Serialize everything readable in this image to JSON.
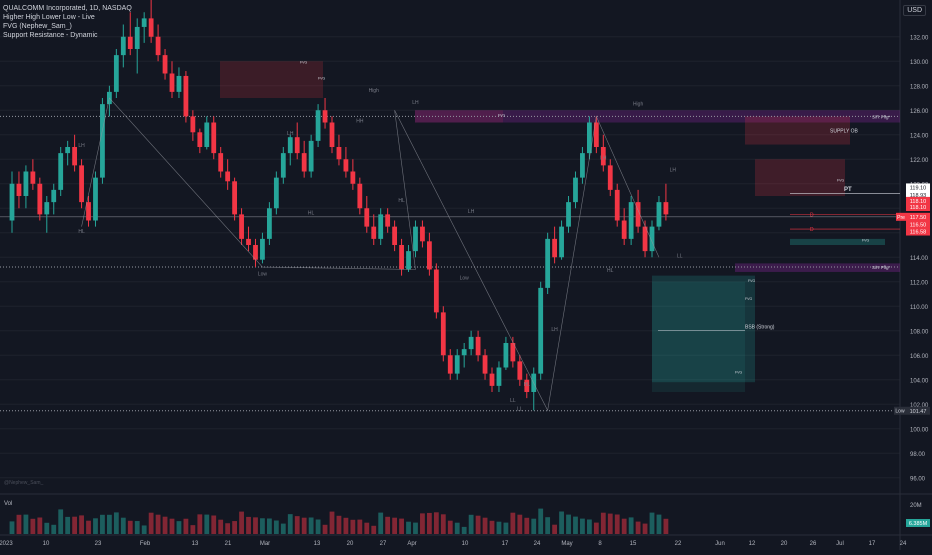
{
  "header": {
    "title": "QUALCOMM Incorporated, 1D, NASDAQ",
    "indicators": [
      "Higher High Lower Low - Live",
      "FVG (Nephew_Sam_)",
      "Support Resistance - Dynamic"
    ],
    "currency": "USD",
    "watermark": "@Nephew_Sam_"
  },
  "chart_data": {
    "type": "candlestick",
    "symbol": "QCOM",
    "interval": "1D",
    "exchange": "NASDAQ",
    "ylim": [
      95,
      135
    ],
    "yticks": [
      "132.00",
      "130.00",
      "128.00",
      "126.00",
      "124.00",
      "122.00",
      "120.00",
      "118.00",
      "116.00",
      "114.00",
      "112.00",
      "110.00",
      "108.00",
      "106.00",
      "104.00",
      "102.00",
      "100.00",
      "98.00",
      "96.00"
    ],
    "xticks": [
      "2023",
      "10",
      "23",
      "Feb",
      "13",
      "21",
      "Mar",
      "13",
      "20",
      "27",
      "Apr",
      "10",
      "17",
      "24",
      "May",
      "8",
      "15",
      "22",
      "Jun",
      "12",
      "20",
      "26",
      "Jul",
      "17",
      "24"
    ],
    "volume_label": "Vol",
    "volume_ticks": [
      "20M"
    ],
    "volume_value": "6.385M",
    "candles": [
      [
        117,
        121,
        116,
        120
      ],
      [
        120,
        121,
        118,
        119
      ],
      [
        119,
        121.5,
        118,
        121
      ],
      [
        121,
        122,
        119.5,
        120
      ],
      [
        120,
        120.5,
        117,
        117.5
      ],
      [
        117.5,
        119,
        116,
        118.5
      ],
      [
        118.5,
        120,
        117.5,
        119.5
      ],
      [
        119.5,
        123,
        119,
        122.5
      ],
      [
        122.5,
        123.5,
        121.5,
        123
      ],
      [
        123,
        124,
        121,
        121.5
      ],
      [
        121.5,
        122,
        118,
        118.5
      ],
      [
        118.5,
        119,
        116.5,
        117
      ],
      [
        117,
        121,
        116.5,
        120.5
      ],
      [
        120.5,
        127,
        120,
        126.5
      ],
      [
        126.5,
        128,
        125.5,
        127.5
      ],
      [
        127.5,
        131,
        127,
        130.5
      ],
      [
        130.5,
        133,
        129.5,
        132
      ],
      [
        132,
        134,
        130.5,
        131
      ],
      [
        131,
        133.5,
        129,
        132.8
      ],
      [
        132.8,
        134,
        131.5,
        133.5
      ],
      [
        133.5,
        135,
        131.5,
        132
      ],
      [
        132,
        133,
        130,
        130.5
      ],
      [
        130.5,
        131,
        128.5,
        129
      ],
      [
        129,
        130,
        127,
        127.5
      ],
      [
        127.5,
        129.5,
        127,
        128.8
      ],
      [
        128.8,
        129.2,
        125,
        125.5
      ],
      [
        125.5,
        126,
        123.5,
        124.2
      ],
      [
        124.2,
        124.5,
        122.5,
        123
      ],
      [
        123,
        125.5,
        122.8,
        125
      ],
      [
        125,
        125.5,
        122,
        122.5
      ],
      [
        122.5,
        123,
        120.5,
        121
      ],
      [
        121,
        122,
        119.5,
        120.2
      ],
      [
        120.2,
        120.5,
        117,
        117.5
      ],
      [
        117.5,
        118,
        115,
        115.5
      ],
      [
        115.5,
        116.5,
        114.5,
        115
      ],
      [
        115,
        115.5,
        113.2,
        113.8
      ],
      [
        113.8,
        116,
        113.5,
        115.5
      ],
      [
        115.5,
        118.5,
        115,
        118
      ],
      [
        118,
        121,
        117.5,
        120.5
      ],
      [
        120.5,
        123,
        120,
        122.5
      ],
      [
        122.5,
        124,
        121.5,
        123.8
      ],
      [
        123.8,
        125,
        122,
        122.5
      ],
      [
        122.5,
        123.5,
        120.5,
        121
      ],
      [
        121,
        124,
        120.5,
        123.5
      ],
      [
        123.5,
        126.5,
        123,
        126
      ],
      [
        126,
        127,
        124.5,
        125
      ],
      [
        125,
        125.5,
        122.5,
        123
      ],
      [
        123,
        124,
        121.5,
        122
      ],
      [
        122,
        123,
        120.5,
        121
      ],
      [
        121,
        122,
        119.5,
        120
      ],
      [
        120,
        120.5,
        117.5,
        118
      ],
      [
        118,
        119,
        116,
        116.5
      ],
      [
        116.5,
        117.5,
        115,
        115.5
      ],
      [
        115.5,
        118,
        115,
        117.5
      ],
      [
        117.5,
        118,
        116,
        116.5
      ],
      [
        116.5,
        117,
        114.5,
        115
      ],
      [
        115,
        115.5,
        112.5,
        113
      ],
      [
        113,
        115,
        112.8,
        114.5
      ],
      [
        114.5,
        117,
        114,
        116.5
      ],
      [
        116.5,
        117,
        114.8,
        115.3
      ],
      [
        115.3,
        116,
        112.5,
        113
      ],
      [
        113,
        113.5,
        109,
        109.5
      ],
      [
        109.5,
        110,
        105.5,
        106
      ],
      [
        106,
        106.5,
        104,
        104.5
      ],
      [
        104.5,
        106.5,
        104,
        106
      ],
      [
        106,
        107,
        105,
        106.5
      ],
      [
        106.5,
        108,
        106,
        107.5
      ],
      [
        107.5,
        108,
        105.5,
        106
      ],
      [
        106,
        106.5,
        104,
        104.5
      ],
      [
        104.5,
        105,
        103,
        103.5
      ],
      [
        103.5,
        105.5,
        103,
        105
      ],
      [
        105,
        107.5,
        104.8,
        107
      ],
      [
        107,
        107.5,
        105,
        105.5
      ],
      [
        105.5,
        106,
        103.5,
        104
      ],
      [
        104,
        104.5,
        102.5,
        103
      ],
      [
        103,
        105,
        101.5,
        104.5
      ],
      [
        104.5,
        112,
        104,
        111.5
      ],
      [
        111.5,
        116,
        111,
        115.5
      ],
      [
        115.5,
        116.5,
        113.5,
        114
      ],
      [
        114,
        117,
        113.8,
        116.5
      ],
      [
        116.5,
        119,
        116,
        118.5
      ],
      [
        118.5,
        121,
        118,
        120.5
      ],
      [
        120.5,
        123,
        120,
        122.5
      ],
      [
        122.5,
        125.5,
        122,
        125
      ],
      [
        125,
        125.5,
        122.5,
        123
      ],
      [
        123,
        124,
        121,
        121.5
      ],
      [
        121.5,
        122,
        119,
        119.5
      ],
      [
        119.5,
        120,
        116.5,
        117
      ],
      [
        117,
        118,
        115,
        115.5
      ],
      [
        115.5,
        119,
        115,
        118.5
      ],
      [
        118.5,
        119.5,
        116,
        116.5
      ],
      [
        116.5,
        117,
        114,
        114.5
      ],
      [
        114.5,
        117,
        114,
        116.5
      ],
      [
        116.5,
        119,
        116.2,
        118.5
      ],
      [
        118.5,
        120,
        117,
        117.5
      ]
    ],
    "annotations": {
      "swing_labels": [
        "HL",
        "LH",
        "Low",
        "LH",
        "HL",
        "HH",
        "High",
        "HL",
        "LH",
        "LH",
        "LL",
        "Low",
        "LH",
        "LL",
        "HL",
        "HL",
        "LH",
        "LL",
        "High",
        "LH"
      ],
      "zones": [
        "SUPPLY OB",
        "BSB (Strong)"
      ],
      "levels": [
        "S/R Pflg*",
        "S/R Pflg*",
        "Low"
      ],
      "fvg_labels": [
        "FVG",
        "FVG",
        "FVG",
        "FVG",
        "FVG",
        "FVG",
        "FVG",
        "FVG"
      ],
      "target_label": "PT",
      "markers": [
        "D",
        "D"
      ]
    },
    "price_tags": [
      {
        "value": "119.10",
        "color": "#ffffff",
        "fg": "#131722"
      },
      {
        "value": "118.93",
        "color": "#ffffff",
        "fg": "#131722"
      },
      {
        "value": "118.10",
        "color": "#f23645",
        "fg": "#ffffff"
      },
      {
        "value": "118.10",
        "color": "#f23645",
        "fg": "#ffffff"
      },
      {
        "value": "117.50",
        "color": "#f23645",
        "fg": "#ffffff"
      },
      {
        "value": "116.50",
        "color": "#f23645",
        "fg": "#ffffff"
      },
      {
        "value": "116.58",
        "color": "#f23645",
        "fg": "#ffffff"
      },
      {
        "value": "101.47",
        "color": "#2a2e39",
        "fg": "#d1d4dc"
      }
    ],
    "price_tag_labels": [
      "Pre",
      "Low"
    ],
    "colors": {
      "up": "#26a69a",
      "down": "#f23645",
      "background": "#131722",
      "grid": "#1e222d"
    }
  }
}
